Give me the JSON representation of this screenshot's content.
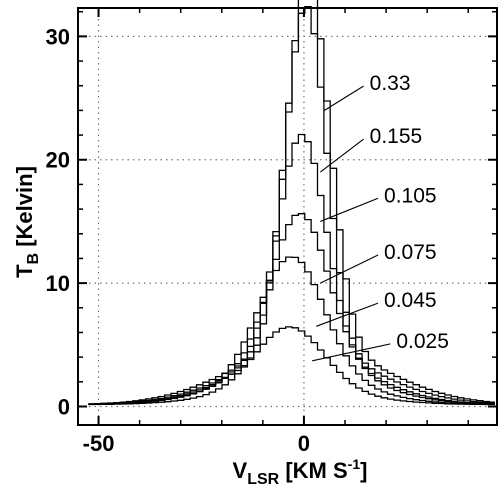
{
  "chart_data": {
    "type": "line",
    "title": "",
    "xlabel": {
      "main": "V",
      "sub": "LSR",
      "units": " [KM S",
      "sup": "-1",
      "close": "]"
    },
    "ylabel": {
      "main": "T",
      "sub": "B",
      "units": " [Kelvin]"
    },
    "xlim": [
      -55,
      47
    ],
    "ylim": [
      -1.5,
      32.3
    ],
    "xticks": [
      -50,
      0
    ],
    "yticks": [
      0,
      10,
      20,
      30
    ],
    "grid": true,
    "grid_style": "dotted",
    "colors": {
      "line": "#000000",
      "grid": "#777777"
    },
    "series": [
      {
        "name": "0.33",
        "peak": 29.8,
        "center": 1.0,
        "width": 5.2,
        "wing_amp": 4.7,
        "wing_width": 18,
        "label_at": [
          5,
          24.0
        ]
      },
      {
        "name": "0.155",
        "peak": 28.1,
        "center": 0.5,
        "width": 4.9,
        "wing_amp": 4.3,
        "wing_width": 17,
        "label_at": [
          4,
          19.0
        ]
      },
      {
        "name": "0.105",
        "peak": 17.9,
        "center": -0.5,
        "width": 5.8,
        "wing_amp": 4.0,
        "wing_width": 16,
        "label_at": [
          4,
          15.0
        ]
      },
      {
        "name": "0.075",
        "peak": 12.2,
        "center": -1.0,
        "width": 7.0,
        "wing_amp": 3.3,
        "wing_width": 16,
        "label_at": [
          4,
          10.0
        ]
      },
      {
        "name": "0.045",
        "peak": 9.6,
        "center": -3.0,
        "width": 7.8,
        "wing_amp": 2.4,
        "wing_width": 16,
        "label_at": [
          3,
          6.5
        ]
      },
      {
        "name": "0.025",
        "peak": 5.0,
        "center": -3.5,
        "width": 8.2,
        "wing_amp": 1.3,
        "wing_width": 16,
        "label_at": [
          2,
          3.7
        ]
      }
    ],
    "annotations": [
      {
        "text": "0.33",
        "x": 16.0,
        "y": 26.3
      },
      {
        "text": "0.155",
        "x": 16.0,
        "y": 22.0
      },
      {
        "text": "0.105",
        "x": 19.5,
        "y": 17.2
      },
      {
        "text": "0.075",
        "x": 19.5,
        "y": 12.6
      },
      {
        "text": "0.045",
        "x": 19.5,
        "y": 8.7
      },
      {
        "text": "0.025",
        "x": 22.5,
        "y": 5.4
      }
    ]
  }
}
